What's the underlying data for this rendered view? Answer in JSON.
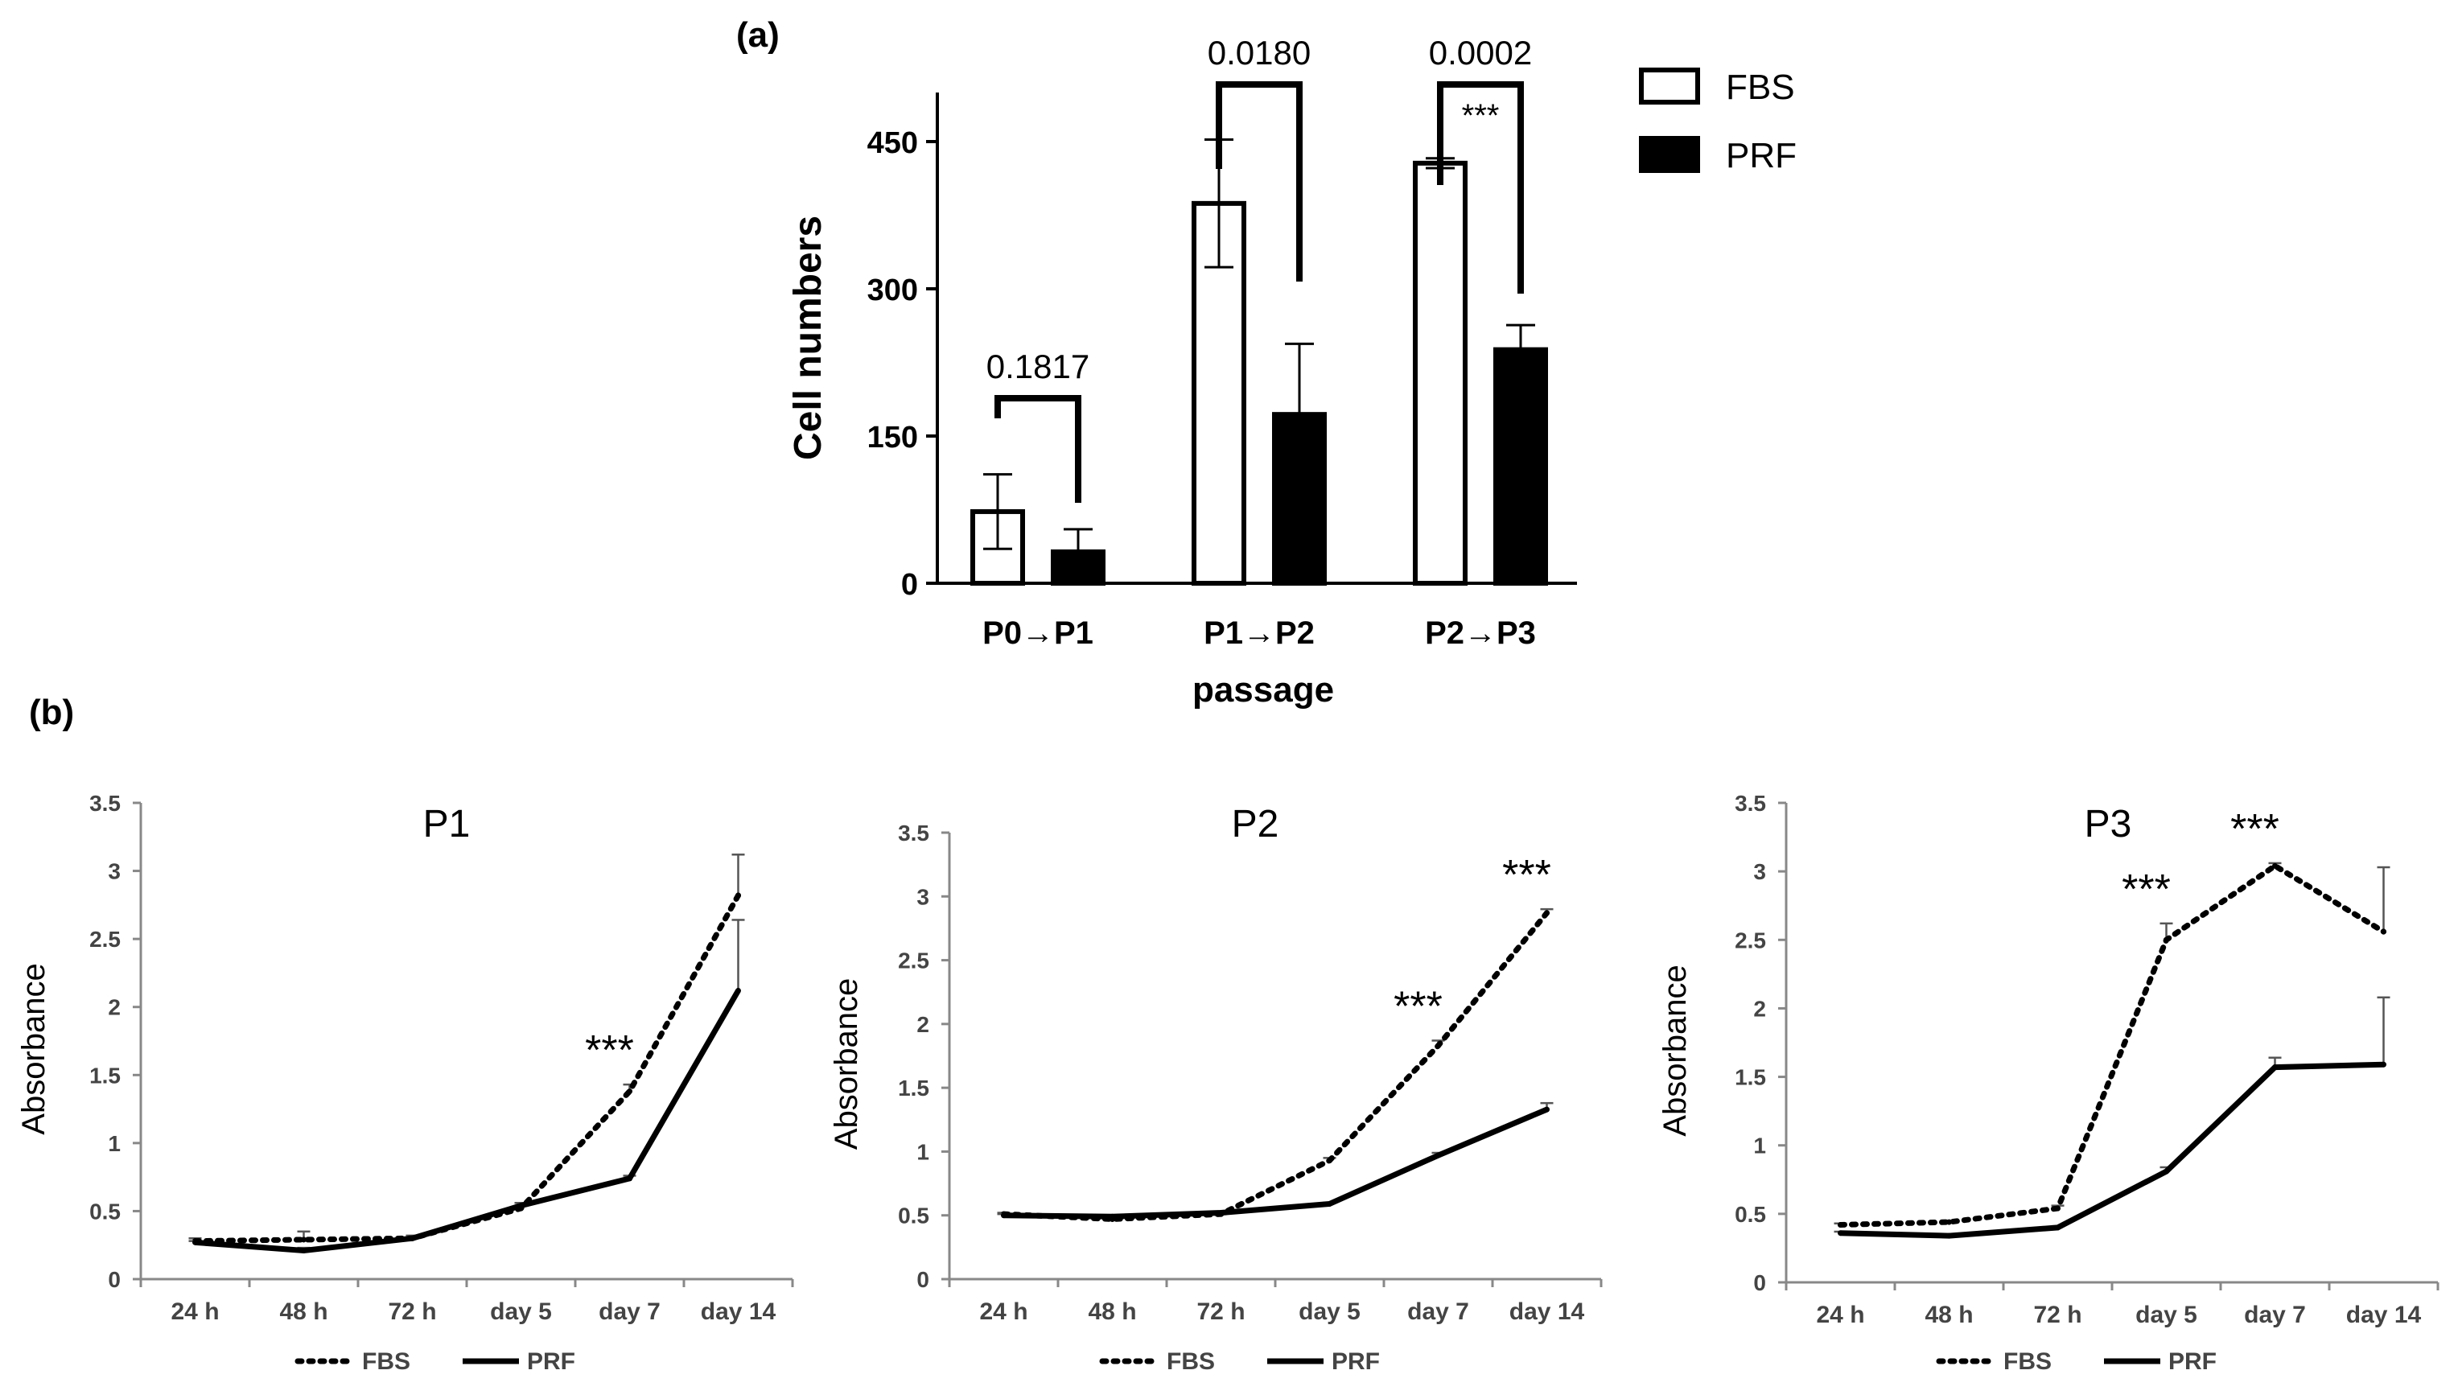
{
  "panel_a": {
    "label": "(a)",
    "ylabel": "Cell numbers",
    "xlabel": "passage",
    "legend": [
      {
        "name": "FBS",
        "style": "open"
      },
      {
        "name": "PRF",
        "style": "filled"
      }
    ],
    "p_values": [
      "0.1817",
      "0.0180",
      "0.0002"
    ],
    "significance": [
      "",
      "",
      "***"
    ]
  },
  "panel_b": {
    "label": "(b)",
    "ylabel": "Absorbance",
    "legend": [
      {
        "name": "FBS",
        "style": "dotted"
      },
      {
        "name": "PRF",
        "style": "solid"
      }
    ]
  },
  "colors": {
    "ink": "#000000",
    "fill": "#000000",
    "open": "#ffffff"
  },
  "chart_data": [
    {
      "type": "bar",
      "title": "",
      "xlabel": "passage",
      "ylabel": "Cell numbers",
      "categories": [
        "P0→P1",
        "P1→P2",
        "P2→P3"
      ],
      "ylim": [
        0,
        500
      ],
      "yticks": [
        0,
        150,
        300,
        450
      ],
      "series": [
        {
          "name": "FBS",
          "values": [
            73,
            387,
            428
          ],
          "errors": [
            38,
            65,
            5
          ]
        },
        {
          "name": "PRF",
          "values": [
            32,
            172,
            238
          ],
          "errors": [
            23,
            72,
            25
          ]
        }
      ]
    },
    {
      "type": "line",
      "title": "P1",
      "ylabel": "Absorbance",
      "categories": [
        "24 h",
        "48 h",
        "72 h",
        "day 5",
        "day 7",
        "day 14"
      ],
      "ylim": [
        0,
        3.5
      ],
      "yticks": [
        "0",
        "0.5",
        "1",
        "1.5",
        "2",
        "2.5",
        "3",
        "3.5"
      ],
      "series": [
        {
          "name": "FBS",
          "style": "dotted",
          "values": [
            0.28,
            0.29,
            0.3,
            0.52,
            1.38,
            2.82
          ],
          "errors": [
            0.02,
            0.06,
            0.02,
            0.04,
            0.05,
            0.3
          ]
        },
        {
          "name": "PRF",
          "style": "solid",
          "values": [
            0.27,
            0.21,
            0.3,
            0.54,
            0.74,
            2.12
          ],
          "errors": [
            0.01,
            0.02,
            0.01,
            0.02,
            0.02,
            0.52
          ]
        }
      ],
      "annotations": [
        {
          "category": "day 7",
          "text": "***"
        }
      ]
    },
    {
      "type": "line",
      "title": "P2",
      "ylabel": "Absorbance",
      "categories": [
        "24 h",
        "48 h",
        "72 h",
        "day 5",
        "day 7",
        "day 14"
      ],
      "ylim": [
        0,
        3.5
      ],
      "yticks": [
        "0",
        "0.5",
        "1",
        "1.5",
        "2",
        "2.5",
        "3",
        "3.5"
      ],
      "series": [
        {
          "name": "FBS",
          "style": "dotted",
          "values": [
            0.51,
            0.47,
            0.51,
            0.93,
            1.83,
            2.87
          ],
          "errors": [
            0.01,
            0.01,
            0.01,
            0.02,
            0.04,
            0.03
          ]
        },
        {
          "name": "PRF",
          "style": "solid",
          "values": [
            0.5,
            0.49,
            0.52,
            0.59,
            0.97,
            1.33
          ],
          "errors": [
            0.01,
            0.01,
            0.01,
            0.01,
            0.02,
            0.05
          ]
        }
      ],
      "annotations": [
        {
          "category": "day 7",
          "text": "***"
        },
        {
          "category": "day 14",
          "text": "***"
        }
      ]
    },
    {
      "type": "line",
      "title": "P3",
      "ylabel": "Absorbance",
      "categories": [
        "24 h",
        "48 h",
        "72 h",
        "day 5",
        "day 7",
        "day 14"
      ],
      "ylim": [
        0,
        3.5
      ],
      "yticks": [
        "0",
        "0.5",
        "1",
        "1.5",
        "2",
        "2.5",
        "3",
        "3.5"
      ],
      "series": [
        {
          "name": "FBS",
          "style": "dotted",
          "values": [
            0.42,
            0.44,
            0.54,
            2.5,
            3.04,
            2.56
          ],
          "errors": [
            0.01,
            0.01,
            0.02,
            0.12,
            0.02,
            0.47
          ]
        },
        {
          "name": "PRF",
          "style": "solid",
          "values": [
            0.36,
            0.34,
            0.4,
            0.81,
            1.57,
            1.59
          ],
          "errors": [
            0.01,
            0.01,
            0.01,
            0.03,
            0.07,
            0.49
          ]
        }
      ],
      "annotations": [
        {
          "category": "day 5",
          "text": "***"
        },
        {
          "category": "day 7",
          "text": "***"
        }
      ]
    }
  ]
}
